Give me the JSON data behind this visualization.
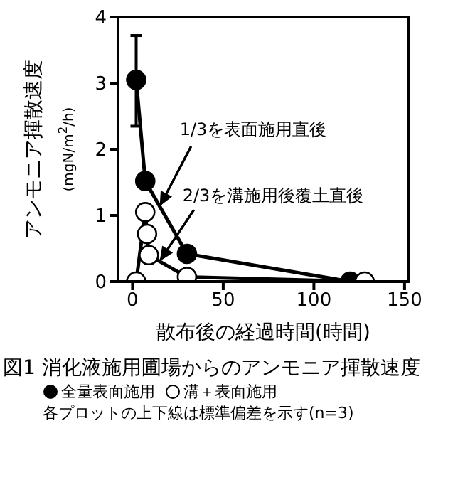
{
  "chart_data": {
    "type": "line",
    "title": "図1  消化液施用圃場からのアンモニア揮散速度",
    "xlabel": "散布後の経過時間(時間)",
    "ylabel": "アンモニア揮散速度\n(mgN/m$^{2}$/h)",
    "series": [
      {
        "name": "全量表面施用",
        "color": "#000000",
        "x": [
          2,
          7,
          30,
          120
        ],
        "values": [
          3.05,
          1.52,
          0.42,
          0
        ],
        "errors": [
          [
            2.35,
            3.72
          ],
          null,
          null,
          null
        ]
      },
      {
        "name": "溝＋表面施用",
        "color": "#ffffff",
        "x": [
          2,
          7,
          8,
          9,
          30,
          128
        ],
        "values": [
          0,
          1.05,
          0.72,
          0.4,
          0.07,
          0
        ]
      }
    ],
    "xlim": [
      -8,
      152
    ],
    "xticks": [
      0,
      50,
      100,
      150
    ],
    "ylim": [
      0,
      4
    ],
    "yticks": [
      0,
      1,
      2,
      3,
      4
    ],
    "legend": "bottom",
    "marker": "circle",
    "line_style": "solid",
    "annotations": [
      {
        "text": "1/3を表面施用直後",
        "x": 15,
        "y": 1.14
      },
      {
        "text": "2/3を溝施用後覆土直後",
        "x": 15,
        "y": 0.31
      },
      "各プロットの上下線は標準偏差を示す(n=3)"
    ]
  }
}
